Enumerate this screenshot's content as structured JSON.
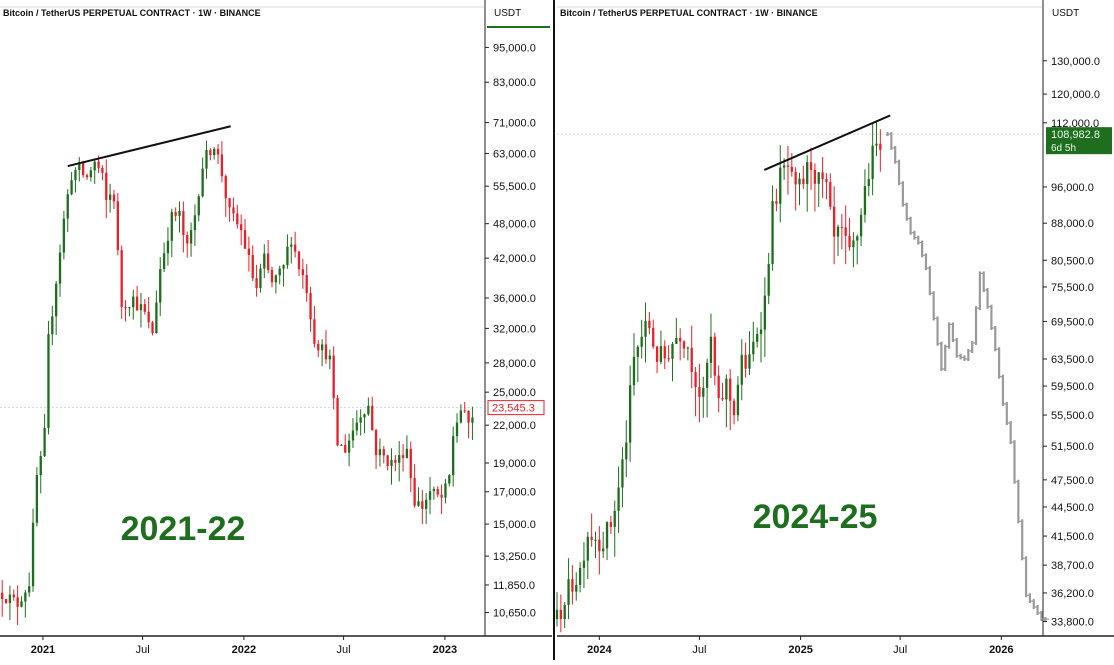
{
  "colors": {
    "up": "#1f6e1f",
    "down": "#e8202b",
    "projection": "#9a9a9a",
    "big_label": "#1f6e1f",
    "last_price_red": "#e8202b",
    "last_price_green": "#1f6e1f",
    "axis_text": "#111111",
    "grid_line": "#bfcfda"
  },
  "chart_data": [
    {
      "type": "candlestick",
      "title": "Bitcoin / TetherUS PERPETUAL CONTRACT · 1W · BINANCE",
      "currency_label": "USDT",
      "overlay_label": "2021-22",
      "y_scale": "log",
      "ylim": [
        9800,
        104000
      ],
      "y_ticks": [
        {
          "value": 95000,
          "label": "95,000.0"
        },
        {
          "value": 83000,
          "label": "83,000.0"
        },
        {
          "value": 71000,
          "label": "71,000.0"
        },
        {
          "value": 63000,
          "label": "63,000.0"
        },
        {
          "value": 55500,
          "label": "55,500.0"
        },
        {
          "value": 48000,
          "label": "48,000.0"
        },
        {
          "value": 42000,
          "label": "42,000.0"
        },
        {
          "value": 36000,
          "label": "36,000.0"
        },
        {
          "value": 32000,
          "label": "32,000.0"
        },
        {
          "value": 28000,
          "label": "28,000.0"
        },
        {
          "value": 25000,
          "label": "25,000.0"
        },
        {
          "value": 22000,
          "label": "22,000.0"
        },
        {
          "value": 19000,
          "label": "19,000.0"
        },
        {
          "value": 17000,
          "label": "17,000.0"
        },
        {
          "value": 15000,
          "label": "15,000.0"
        },
        {
          "value": 13250,
          "label": "13,250.0"
        },
        {
          "value": 11850,
          "label": "11,850.0"
        },
        {
          "value": 10650,
          "label": "10,650.0"
        }
      ],
      "x_range": [
        "2020-10-15",
        "2023-03-13"
      ],
      "x_ticks": [
        {
          "date": "2021-01-01",
          "label": "2021"
        },
        {
          "date": "2021-07-01",
          "label": "Jul"
        },
        {
          "date": "2022-01-01",
          "label": "2022"
        },
        {
          "date": "2022-07-01",
          "label": "Jul"
        },
        {
          "date": "2023-01-01",
          "label": "2023"
        }
      ],
      "last_price": {
        "value": 23545.3,
        "label": "23,545.3",
        "style": "red-outline"
      },
      "trend_line": {
        "from": {
          "date": "2021-02-15",
          "value": 60000
        },
        "to": {
          "date": "2021-12-08",
          "value": 70000
        }
      },
      "close_path": [
        [
          "2020-10-19",
          11500
        ],
        [
          "2020-11-15",
          11000
        ],
        [
          "2020-12-07",
          12000
        ],
        [
          "2020-12-21",
          18000
        ],
        [
          "2021-01-03",
          20000
        ],
        [
          "2021-01-10",
          30000
        ],
        [
          "2021-01-24",
          38000
        ],
        [
          "2021-02-07",
          48000
        ],
        [
          "2021-02-21",
          58000
        ],
        [
          "2021-03-07",
          59500
        ],
        [
          "2021-03-21",
          57000
        ],
        [
          "2021-04-04",
          61000
        ],
        [
          "2021-04-18",
          58000
        ],
        [
          "2021-04-25",
          52000
        ],
        [
          "2021-05-09",
          55000
        ],
        [
          "2021-05-16",
          44000
        ],
        [
          "2021-05-23",
          35000
        ],
        [
          "2021-06-13",
          36000
        ],
        [
          "2021-07-04",
          34000
        ],
        [
          "2021-07-18",
          31000
        ],
        [
          "2021-08-01",
          40000
        ],
        [
          "2021-08-22",
          49000
        ],
        [
          "2021-09-05",
          50000
        ],
        [
          "2021-09-19",
          43000
        ],
        [
          "2021-10-03",
          49000
        ],
        [
          "2021-10-17",
          60000
        ],
        [
          "2021-11-07",
          66000
        ],
        [
          "2021-11-21",
          59000
        ],
        [
          "2021-12-05",
          50000
        ],
        [
          "2021-12-26",
          47000
        ],
        [
          "2022-01-09",
          42000
        ],
        [
          "2022-01-23",
          37000
        ],
        [
          "2022-02-06",
          42000
        ],
        [
          "2022-02-20",
          38000
        ],
        [
          "2022-03-13",
          40000
        ],
        [
          "2022-03-27",
          46000
        ],
        [
          "2022-04-10",
          41000
        ],
        [
          "2022-04-24",
          38000
        ],
        [
          "2022-05-08",
          31000
        ],
        [
          "2022-05-22",
          29500
        ],
        [
          "2022-06-05",
          29000
        ],
        [
          "2022-06-19",
          20500
        ],
        [
          "2022-07-03",
          20000
        ],
        [
          "2022-07-17",
          21500
        ],
        [
          "2022-07-31",
          23000
        ],
        [
          "2022-08-14",
          24000
        ],
        [
          "2022-08-28",
          20000
        ],
        [
          "2022-09-11",
          19500
        ],
        [
          "2022-09-25",
          19000
        ],
        [
          "2022-10-09",
          19200
        ],
        [
          "2022-10-23",
          20500
        ],
        [
          "2022-11-06",
          16500
        ],
        [
          "2022-11-20",
          16000
        ],
        [
          "2022-12-04",
          17000
        ],
        [
          "2022-12-25",
          16500
        ],
        [
          "2023-01-08",
          17500
        ],
        [
          "2023-01-15",
          21000
        ],
        [
          "2023-01-29",
          23500
        ],
        [
          "2023-02-12",
          22000
        ],
        [
          "2023-02-26",
          23545
        ]
      ]
    },
    {
      "type": "candlestick",
      "title": "Bitcoin / TetherUS PERPETUAL CONTRACT · 1W · BINANCE",
      "currency_label": "USDT",
      "overlay_label": "2024-25",
      "y_scale": "log",
      "ylim": [
        32800,
        142000
      ],
      "y_ticks": [
        {
          "value": 130000,
          "label": "130,000.0"
        },
        {
          "value": 120000,
          "label": "120,000.0"
        },
        {
          "value": 112000,
          "label": "112,000.0"
        },
        {
          "value": 96000,
          "label": "96,000.0"
        },
        {
          "value": 88000,
          "label": "88,000.0"
        },
        {
          "value": 80500,
          "label": "80,500.0"
        },
        {
          "value": 75500,
          "label": "75,500.0"
        },
        {
          "value": 69500,
          "label": "69,500.0"
        },
        {
          "value": 63500,
          "label": "63,500.0"
        },
        {
          "value": 59500,
          "label": "59,500.0"
        },
        {
          "value": 55500,
          "label": "55,500.0"
        },
        {
          "value": 51500,
          "label": "51,500.0"
        },
        {
          "value": 47500,
          "label": "47,500.0"
        },
        {
          "value": 44500,
          "label": "44,500.0"
        },
        {
          "value": 41500,
          "label": "41,500.0"
        },
        {
          "value": 38700,
          "label": "38,700.0"
        },
        {
          "value": 36200,
          "label": "36,200.0"
        },
        {
          "value": 33800,
          "label": "33,800.0"
        }
      ],
      "x_range": [
        "2023-10-16",
        "2026-03-16"
      ],
      "x_ticks": [
        {
          "date": "2024-01-01",
          "label": "2024"
        },
        {
          "date": "2024-07-01",
          "label": "Jul"
        },
        {
          "date": "2025-01-01",
          "label": "2025"
        },
        {
          "date": "2025-07-01",
          "label": "Jul"
        },
        {
          "date": "2026-01-01",
          "label": "2026"
        }
      ],
      "last_price": {
        "value": 108982.8,
        "label": "108,982.8",
        "countdown": "6d 5h",
        "style": "green-filled"
      },
      "trend_line": {
        "from": {
          "date": "2024-10-27",
          "value": 100000
        },
        "to": {
          "date": "2025-06-13",
          "value": 114000
        }
      },
      "close_path": [
        [
          "2023-10-16",
          34000
        ],
        [
          "2023-10-29",
          35500
        ],
        [
          "2023-11-12",
          37000
        ],
        [
          "2023-11-26",
          38000
        ],
        [
          "2023-12-10",
          42000
        ],
        [
          "2024-01-07",
          41000
        ],
        [
          "2024-01-21",
          42500
        ],
        [
          "2024-02-04",
          46000
        ],
        [
          "2024-02-18",
          52000
        ],
        [
          "2024-03-03",
          63000
        ],
        [
          "2024-03-17",
          67000
        ],
        [
          "2024-03-31",
          69000
        ],
        [
          "2024-04-14",
          64000
        ],
        [
          "2024-04-28",
          63500
        ],
        [
          "2024-05-12",
          66000
        ],
        [
          "2024-05-26",
          68000
        ],
        [
          "2024-06-09",
          66000
        ],
        [
          "2024-06-23",
          61000
        ],
        [
          "2024-07-07",
          57000
        ],
        [
          "2024-07-21",
          67000
        ],
        [
          "2024-08-04",
          56000
        ],
        [
          "2024-08-18",
          60000
        ],
        [
          "2024-09-01",
          56000
        ],
        [
          "2024-09-15",
          63000
        ],
        [
          "2024-09-29",
          62500
        ],
        [
          "2024-10-13",
          68000
        ],
        [
          "2024-10-27",
          72000
        ],
        [
          "2024-11-10",
          90000
        ],
        [
          "2024-11-24",
          98000
        ],
        [
          "2024-12-08",
          101000
        ],
        [
          "2024-12-22",
          94000
        ],
        [
          "2025-01-05",
          97000
        ],
        [
          "2025-01-19",
          102000
        ],
        [
          "2025-02-02",
          97000
        ],
        [
          "2025-02-16",
          96000
        ],
        [
          "2025-03-02",
          84000
        ],
        [
          "2025-03-16",
          86000
        ],
        [
          "2025-03-30",
          81000
        ],
        [
          "2025-04-13",
          85000
        ],
        [
          "2025-04-27",
          95000
        ],
        [
          "2025-05-11",
          103000
        ],
        [
          "2025-05-25",
          108000
        ],
        [
          "2025-06-01",
          109000
        ]
      ],
      "projection_path": [
        [
          "2025-06-08",
          109000
        ],
        [
          "2025-06-22",
          102000
        ],
        [
          "2025-07-06",
          92000
        ],
        [
          "2025-07-20",
          86000
        ],
        [
          "2025-08-03",
          84000
        ],
        [
          "2025-08-17",
          79000
        ],
        [
          "2025-08-31",
          70000
        ],
        [
          "2025-09-14",
          62000
        ],
        [
          "2025-09-28",
          69000
        ],
        [
          "2025-10-12",
          64000
        ],
        [
          "2025-10-26",
          63500
        ],
        [
          "2025-11-09",
          66000
        ],
        [
          "2025-11-23",
          78000
        ],
        [
          "2025-12-07",
          72000
        ],
        [
          "2025-12-21",
          65000
        ],
        [
          "2026-01-04",
          57000
        ],
        [
          "2026-01-18",
          52000
        ],
        [
          "2026-02-01",
          43000
        ],
        [
          "2026-02-15",
          36000
        ],
        [
          "2026-03-01",
          35000
        ],
        [
          "2026-03-15",
          34000
        ]
      ]
    }
  ]
}
